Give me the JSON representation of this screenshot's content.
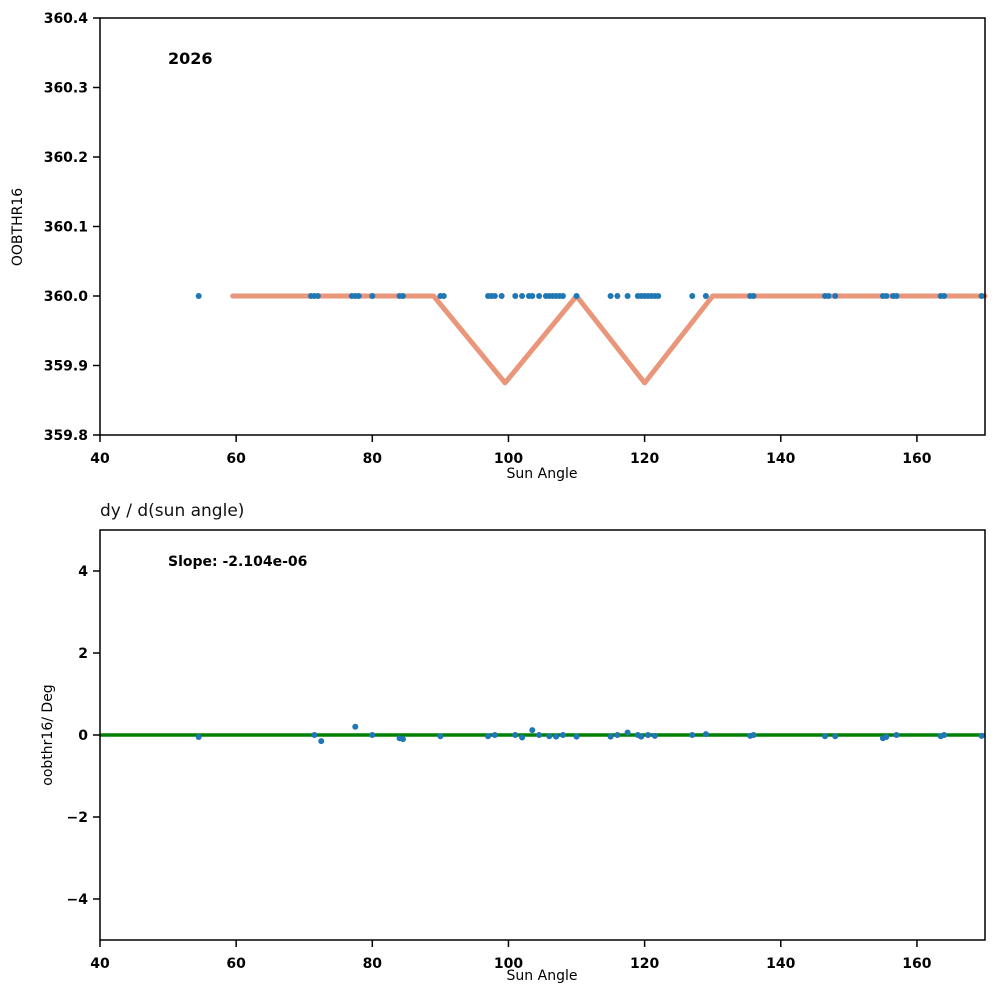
{
  "chart_data": [
    {
      "type": "scatter",
      "annotation": "2026",
      "xlabel": "Sun Angle",
      "ylabel": "OOBTHR16",
      "xlim": [
        40,
        170
      ],
      "ylim": [
        359.8,
        360.4
      ],
      "xticks": [
        40,
        60,
        80,
        100,
        120,
        140,
        160
      ],
      "xtick_labels": [
        "40",
        "60",
        "80",
        "100",
        "120",
        "140",
        "160"
      ],
      "yticks": [
        359.8,
        359.9,
        360.0,
        360.1,
        360.2,
        360.3,
        360.4
      ],
      "ytick_labels": [
        "359.8",
        "359.9",
        "360.0",
        "360.1",
        "360.2",
        "360.3",
        "360.4"
      ],
      "scatter_color": "#1f77b4",
      "line_color": "#E9967A",
      "scatter_y": 360.0,
      "scatter_x": [
        54.5,
        71,
        71.5,
        72,
        77,
        77.5,
        78,
        80,
        84,
        84.5,
        90,
        90.5,
        97,
        97.5,
        98,
        99,
        101,
        102,
        103,
        103.5,
        104.5,
        105.5,
        106,
        106.5,
        107,
        107.5,
        108,
        110,
        115,
        116,
        117.5,
        119,
        119.5,
        120,
        120.5,
        121,
        121.5,
        122,
        127,
        129,
        135.5,
        136,
        146.5,
        147,
        148,
        155,
        155.5,
        156.5,
        157,
        163.5,
        164,
        169.5
      ],
      "model_line": [
        [
          59.5,
          360.0
        ],
        [
          89,
          360.0
        ],
        [
          99.5,
          359.875
        ],
        [
          110,
          360.0
        ],
        [
          120,
          359.875
        ],
        [
          130,
          360.0
        ],
        [
          170,
          360.0
        ]
      ]
    },
    {
      "type": "scatter",
      "title": "dy / d(sun angle)",
      "annotation": "Slope: -2.104e-06",
      "xlabel": "Sun Angle",
      "ylabel": "oobthr16/ Deg",
      "xlim": [
        40,
        170
      ],
      "ylim": [
        -5,
        5
      ],
      "xticks": [
        40,
        60,
        80,
        100,
        120,
        140,
        160
      ],
      "xtick_labels": [
        "40",
        "60",
        "80",
        "100",
        "120",
        "140",
        "160"
      ],
      "yticks": [
        -4,
        -2,
        0,
        2,
        4
      ],
      "ytick_labels": [
        "−4",
        "−2",
        "0",
        "2",
        "4"
      ],
      "scatter_color": "#1f77b4",
      "zero_line": {
        "y": 0,
        "color": "#008000"
      },
      "scatter_points": [
        [
          54.5,
          -0.05
        ],
        [
          71.5,
          0.0
        ],
        [
          72.5,
          -0.15
        ],
        [
          77.5,
          0.2
        ],
        [
          80,
          0.0
        ],
        [
          84,
          -0.08
        ],
        [
          84.5,
          -0.1
        ],
        [
          90,
          -0.03
        ],
        [
          97,
          -0.03
        ],
        [
          98,
          0.0
        ],
        [
          101,
          0.0
        ],
        [
          102,
          -0.06
        ],
        [
          103.5,
          0.12
        ],
        [
          104.5,
          0.0
        ],
        [
          106,
          -0.03
        ],
        [
          107,
          -0.04
        ],
        [
          108,
          0.0
        ],
        [
          110,
          -0.04
        ],
        [
          115,
          -0.04
        ],
        [
          116,
          0.0
        ],
        [
          117.5,
          0.06
        ],
        [
          119,
          0.0
        ],
        [
          119.5,
          -0.04
        ],
        [
          120.5,
          0.0
        ],
        [
          121.5,
          -0.02
        ],
        [
          127,
          0.0
        ],
        [
          129,
          0.02
        ],
        [
          135.5,
          -0.02
        ],
        [
          136,
          0.0
        ],
        [
          146.5,
          -0.03
        ],
        [
          148,
          -0.03
        ],
        [
          155,
          -0.08
        ],
        [
          155.5,
          -0.05
        ],
        [
          157,
          0.0
        ],
        [
          163.5,
          -0.03
        ],
        [
          164,
          0.0
        ],
        [
          169.5,
          -0.02
        ]
      ]
    }
  ]
}
